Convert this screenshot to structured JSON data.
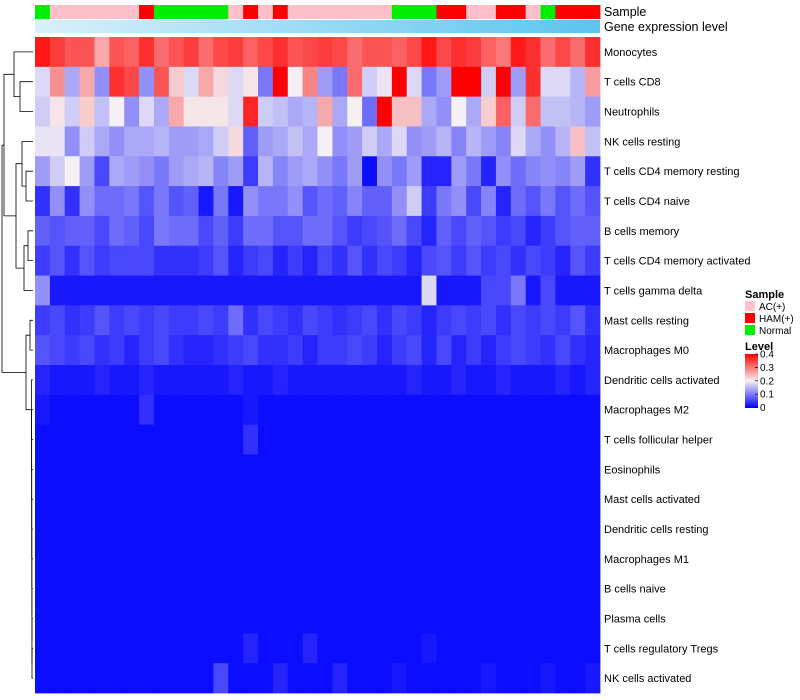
{
  "chart_data": {
    "type": "heatmap",
    "title": "",
    "xlabel": "",
    "ylabel": "",
    "rows": [
      "Monocytes",
      "T cells CD8",
      "Neutrophils",
      "NK cells resting",
      "T cells CD4 memory resting",
      "T cells CD4 naive",
      "B cells memory",
      "T cells CD4 memory activated",
      "T cells gamma delta",
      "Mast cells resting",
      "Macrophages M0",
      "Dendritic cells activated",
      "Macrophages M2",
      "T cells follicular helper",
      "Eosinophils",
      "Mast cells activated",
      "Dendritic cells resting",
      "Macrophages M1",
      "B cells naive",
      "Plasma cells",
      "T cells regulatory  Tregs",
      "NK cells activated"
    ],
    "sample_groups": [
      "Normal",
      "AC(+)",
      "AC(+)",
      "AC(+)",
      "AC(+)",
      "AC(+)",
      "AC(+)",
      "HAM(+)",
      "Normal",
      "Normal",
      "Normal",
      "Normal",
      "Normal",
      "AC(+)",
      "HAM(+)",
      "AC(+)",
      "HAM(+)",
      "AC(+)",
      "AC(+)",
      "AC(+)",
      "AC(+)",
      "AC(+)",
      "AC(+)",
      "AC(+)",
      "Normal",
      "Normal",
      "Normal",
      "HAM(+)",
      "HAM(+)",
      "AC(+)",
      "AC(+)",
      "HAM(+)",
      "HAM(+)",
      "AC(+)",
      "Normal",
      "HAM(+)",
      "HAM(+)",
      "HAM(+)"
    ],
    "annotation_rows": [
      "Sample",
      "Gene expression level"
    ],
    "legends": {
      "sample_title": "Sample",
      "sample_entries": [
        {
          "label": "AC(+)",
          "color": "#ffc0cb"
        },
        {
          "label": "HAM(+)",
          "color": "#ff0000"
        },
        {
          "label": "Normal",
          "color": "#00ee00"
        }
      ],
      "level_title": "Level",
      "level_ticks": [
        "0.4",
        "0.3",
        "0.2",
        "0.1",
        "0"
      ],
      "level_range": [
        0,
        0.4
      ]
    },
    "values": [
      [
        0.38,
        0.35,
        0.33,
        0.33,
        0.26,
        0.33,
        0.32,
        0.36,
        0.31,
        0.33,
        0.35,
        0.31,
        0.34,
        0.35,
        0.32,
        0.34,
        0.36,
        0.33,
        0.34,
        0.35,
        0.34,
        0.31,
        0.33,
        0.33,
        0.32,
        0.34,
        0.38,
        0.34,
        0.36,
        0.35,
        0.32,
        0.3,
        0.38,
        0.36,
        0.31,
        0.34,
        0.31,
        0.36
      ],
      [
        0.18,
        0.28,
        0.14,
        0.26,
        0.12,
        0.36,
        0.34,
        0.12,
        0.33,
        0.23,
        0.18,
        0.26,
        0.22,
        0.18,
        0.21,
        0.1,
        0.4,
        0.2,
        0.29,
        0.13,
        0.1,
        0.31,
        0.17,
        0.19,
        0.4,
        0.18,
        0.1,
        0.13,
        0.4,
        0.4,
        0.17,
        0.42,
        0.13,
        0.36,
        0.18,
        0.18,
        0.15,
        0.27
      ],
      [
        0.17,
        0.21,
        0.17,
        0.23,
        0.16,
        0.2,
        0.12,
        0.18,
        0.14,
        0.26,
        0.21,
        0.21,
        0.21,
        0.18,
        0.37,
        0.17,
        0.16,
        0.14,
        0.15,
        0.26,
        0.14,
        0.2,
        0.09,
        0.41,
        0.24,
        0.24,
        0.14,
        0.12,
        0.2,
        0.14,
        0.23,
        0.32,
        0.17,
        0.31,
        0.16,
        0.16,
        0.15,
        0.13
      ],
      [
        0.19,
        0.19,
        0.12,
        0.17,
        0.14,
        0.12,
        0.14,
        0.14,
        0.15,
        0.13,
        0.13,
        0.14,
        0.17,
        0.22,
        0.08,
        0.13,
        0.14,
        0.16,
        0.14,
        0.2,
        0.12,
        0.13,
        0.17,
        0.14,
        0.18,
        0.12,
        0.13,
        0.15,
        0.11,
        0.15,
        0.13,
        0.11,
        0.18,
        0.14,
        0.12,
        0.15,
        0.24,
        0.16
      ],
      [
        0.13,
        0.17,
        0.2,
        0.13,
        0.06,
        0.14,
        0.13,
        0.12,
        0.1,
        0.13,
        0.14,
        0.15,
        0.11,
        0.13,
        0.05,
        0.15,
        0.11,
        0.13,
        0.14,
        0.12,
        0.1,
        0.13,
        0.01,
        0.12,
        0.1,
        0.13,
        0.03,
        0.03,
        0.13,
        0.1,
        0.03,
        0.12,
        0.09,
        0.11,
        0.12,
        0.11,
        0.13,
        0.04
      ],
      [
        0.04,
        0.12,
        0.04,
        0.12,
        0.09,
        0.09,
        0.1,
        0.07,
        0.1,
        0.07,
        0.08,
        0.02,
        0.1,
        0.02,
        0.12,
        0.1,
        0.1,
        0.12,
        0.07,
        0.09,
        0.08,
        0.11,
        0.08,
        0.08,
        0.12,
        0.17,
        0.05,
        0.1,
        0.12,
        0.06,
        0.11,
        0.03,
        0.09,
        0.07,
        0.1,
        0.07,
        0.09,
        0.07
      ],
      [
        0.08,
        0.07,
        0.08,
        0.08,
        0.06,
        0.09,
        0.08,
        0.06,
        0.1,
        0.09,
        0.09,
        0.06,
        0.08,
        0.05,
        0.09,
        0.09,
        0.07,
        0.07,
        0.09,
        0.09,
        0.07,
        0.05,
        0.06,
        0.07,
        0.09,
        0.06,
        0.03,
        0.08,
        0.06,
        0.08,
        0.07,
        0.05,
        0.06,
        0.03,
        0.05,
        0.07,
        0.08,
        0.08
      ],
      [
        0.05,
        0.07,
        0.04,
        0.07,
        0.05,
        0.06,
        0.06,
        0.06,
        0.04,
        0.04,
        0.04,
        0.05,
        0.07,
        0.03,
        0.05,
        0.06,
        0.03,
        0.05,
        0.03,
        0.06,
        0.04,
        0.07,
        0.04,
        0.06,
        0.05,
        0.03,
        0.06,
        0.07,
        0.05,
        0.07,
        0.05,
        0.06,
        0.04,
        0.06,
        0.05,
        0.03,
        0.07,
        0.05
      ],
      [
        0.12,
        0.02,
        0.02,
        0.02,
        0.02,
        0.02,
        0.02,
        0.02,
        0.02,
        0.02,
        0.02,
        0.02,
        0.02,
        0.02,
        0.02,
        0.02,
        0.02,
        0.02,
        0.02,
        0.02,
        0.02,
        0.02,
        0.02,
        0.02,
        0.02,
        0.02,
        0.18,
        0.02,
        0.02,
        0.02,
        0.06,
        0.06,
        0.1,
        0.02,
        0.06,
        0.02,
        0.02,
        0.02
      ],
      [
        0.05,
        0.06,
        0.04,
        0.05,
        0.07,
        0.05,
        0.06,
        0.05,
        0.06,
        0.05,
        0.05,
        0.06,
        0.05,
        0.09,
        0.04,
        0.06,
        0.05,
        0.04,
        0.06,
        0.05,
        0.04,
        0.05,
        0.06,
        0.04,
        0.06,
        0.05,
        0.03,
        0.05,
        0.06,
        0.05,
        0.06,
        0.04,
        0.06,
        0.05,
        0.06,
        0.05,
        0.07,
        0.04
      ],
      [
        0.07,
        0.06,
        0.05,
        0.06,
        0.04,
        0.05,
        0.03,
        0.05,
        0.06,
        0.04,
        0.03,
        0.03,
        0.04,
        0.05,
        0.06,
        0.04,
        0.04,
        0.05,
        0.03,
        0.05,
        0.05,
        0.06,
        0.05,
        0.03,
        0.05,
        0.06,
        0.03,
        0.06,
        0.03,
        0.05,
        0.03,
        0.05,
        0.06,
        0.05,
        0.04,
        0.06,
        0.04,
        0.03
      ],
      [
        0.03,
        0.02,
        0.02,
        0.02,
        0.03,
        0.02,
        0.02,
        0.03,
        0.02,
        0.02,
        0.02,
        0.02,
        0.02,
        0.03,
        0.02,
        0.02,
        0.03,
        0.02,
        0.02,
        0.02,
        0.02,
        0.02,
        0.02,
        0.02,
        0.02,
        0.03,
        0.02,
        0.02,
        0.03,
        0.02,
        0.02,
        0.03,
        0.02,
        0.02,
        0.02,
        0.03,
        0.02,
        0.03
      ],
      [
        0.02,
        0.01,
        0.01,
        0.01,
        0.01,
        0.01,
        0.01,
        0.04,
        0.01,
        0.01,
        0.01,
        0.01,
        0.01,
        0.01,
        0.02,
        0.01,
        0.01,
        0.01,
        0.01,
        0.01,
        0.01,
        0.01,
        0.01,
        0.01,
        0.01,
        0.01,
        0.01,
        0.01,
        0.01,
        0.01,
        0.01,
        0.01,
        0.01,
        0.01,
        0.01,
        0.01,
        0.01,
        0.01
      ],
      [
        0.01,
        0.01,
        0.01,
        0.01,
        0.01,
        0.01,
        0.01,
        0.01,
        0.01,
        0.01,
        0.01,
        0.01,
        0.01,
        0.01,
        0.04,
        0.01,
        0.01,
        0.01,
        0.01,
        0.01,
        0.01,
        0.01,
        0.01,
        0.01,
        0.01,
        0.01,
        0.01,
        0.01,
        0.01,
        0.01,
        0.01,
        0.01,
        0.01,
        0.01,
        0.01,
        0.01,
        0.01,
        0.01
      ],
      [
        0.01,
        0.01,
        0.01,
        0.01,
        0.01,
        0.01,
        0.01,
        0.01,
        0.01,
        0.01,
        0.01,
        0.01,
        0.01,
        0.01,
        0.01,
        0.01,
        0.01,
        0.01,
        0.01,
        0.01,
        0.01,
        0.01,
        0.01,
        0.01,
        0.01,
        0.01,
        0.01,
        0.01,
        0.01,
        0.01,
        0.01,
        0.01,
        0.01,
        0.01,
        0.01,
        0.01,
        0.01,
        0.01
      ],
      [
        0.01,
        0.01,
        0.01,
        0.01,
        0.01,
        0.01,
        0.01,
        0.01,
        0.01,
        0.01,
        0.01,
        0.01,
        0.01,
        0.01,
        0.01,
        0.01,
        0.01,
        0.01,
        0.01,
        0.01,
        0.01,
        0.01,
        0.01,
        0.01,
        0.01,
        0.01,
        0.01,
        0.01,
        0.01,
        0.01,
        0.01,
        0.01,
        0.01,
        0.01,
        0.01,
        0.01,
        0.01,
        0.01
      ],
      [
        0.01,
        0.01,
        0.01,
        0.01,
        0.01,
        0.01,
        0.01,
        0.01,
        0.01,
        0.01,
        0.01,
        0.01,
        0.01,
        0.01,
        0.01,
        0.01,
        0.01,
        0.01,
        0.01,
        0.01,
        0.01,
        0.01,
        0.01,
        0.01,
        0.01,
        0.01,
        0.01,
        0.01,
        0.01,
        0.01,
        0.01,
        0.01,
        0.01,
        0.01,
        0.01,
        0.01,
        0.01,
        0.01
      ],
      [
        0.01,
        0.01,
        0.01,
        0.01,
        0.01,
        0.01,
        0.01,
        0.01,
        0.01,
        0.01,
        0.01,
        0.01,
        0.01,
        0.01,
        0.01,
        0.01,
        0.01,
        0.01,
        0.01,
        0.01,
        0.01,
        0.01,
        0.01,
        0.01,
        0.01,
        0.01,
        0.01,
        0.01,
        0.01,
        0.01,
        0.01,
        0.01,
        0.01,
        0.01,
        0.01,
        0.01,
        0.01,
        0.01
      ],
      [
        0.01,
        0.01,
        0.01,
        0.01,
        0.01,
        0.01,
        0.01,
        0.01,
        0.01,
        0.01,
        0.01,
        0.01,
        0.01,
        0.01,
        0.01,
        0.01,
        0.01,
        0.01,
        0.01,
        0.01,
        0.01,
        0.01,
        0.01,
        0.01,
        0.01,
        0.01,
        0.01,
        0.01,
        0.01,
        0.01,
        0.01,
        0.01,
        0.01,
        0.01,
        0.01,
        0.01,
        0.01,
        0.01
      ],
      [
        0.01,
        0.01,
        0.01,
        0.01,
        0.01,
        0.01,
        0.01,
        0.01,
        0.01,
        0.01,
        0.01,
        0.01,
        0.01,
        0.01,
        0.01,
        0.01,
        0.01,
        0.01,
        0.01,
        0.01,
        0.01,
        0.01,
        0.01,
        0.01,
        0.01,
        0.01,
        0.01,
        0.01,
        0.01,
        0.01,
        0.01,
        0.01,
        0.01,
        0.01,
        0.01,
        0.01,
        0.01,
        0.01
      ],
      [
        0.01,
        0.01,
        0.01,
        0.01,
        0.01,
        0.01,
        0.01,
        0.01,
        0.01,
        0.01,
        0.01,
        0.01,
        0.01,
        0.01,
        0.03,
        0.01,
        0.01,
        0.01,
        0.03,
        0.01,
        0.01,
        0.01,
        0.01,
        0.01,
        0.01,
        0.01,
        0.02,
        0.01,
        0.01,
        0.01,
        0.01,
        0.01,
        0.01,
        0.01,
        0.01,
        0.01,
        0.01,
        0.01
      ],
      [
        0.01,
        0.01,
        0.01,
        0.01,
        0.01,
        0.01,
        0.01,
        0.01,
        0.01,
        0.01,
        0.01,
        0.01,
        0.06,
        0.01,
        0.01,
        0.01,
        0.03,
        0.01,
        0.01,
        0.01,
        0.03,
        0.01,
        0.01,
        0.01,
        0.02,
        0.01,
        0.01,
        0.01,
        0.01,
        0.01,
        0.02,
        0.01,
        0.01,
        0.01,
        0.02,
        0.01,
        0.01,
        0.02
      ]
    ]
  }
}
